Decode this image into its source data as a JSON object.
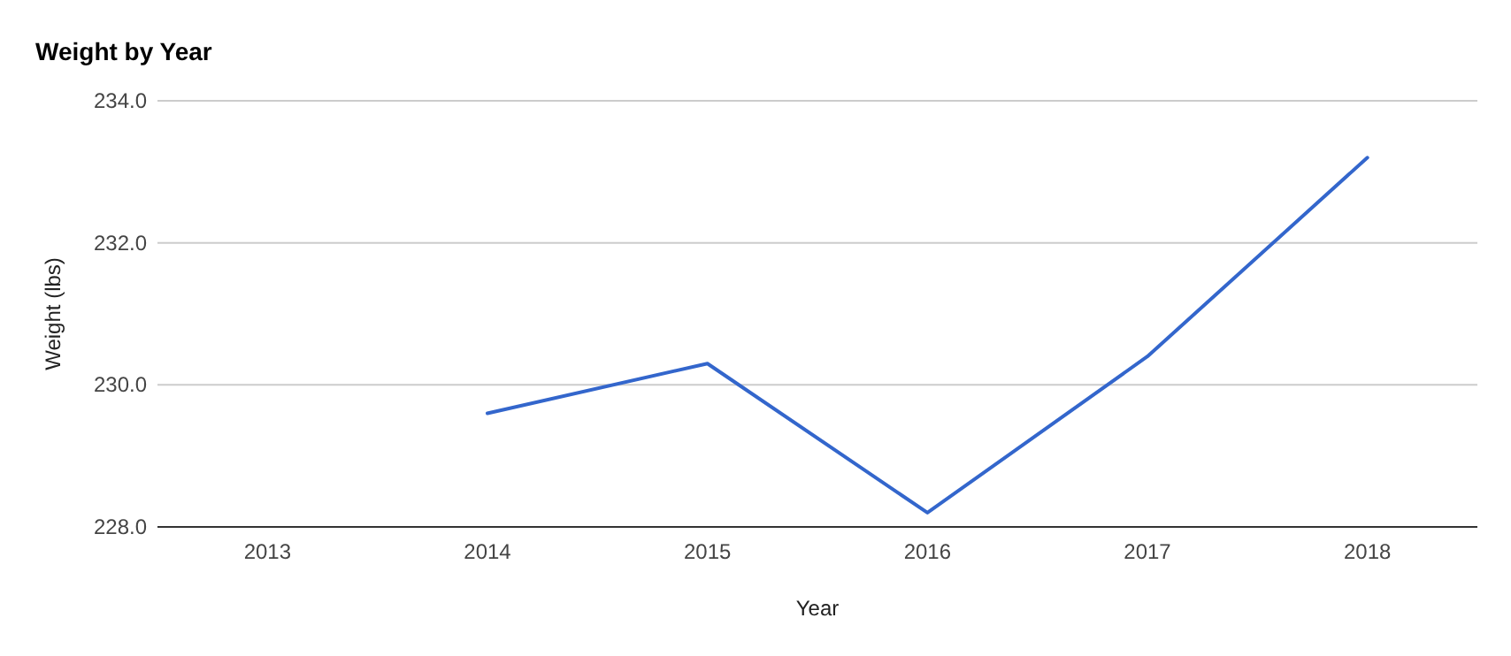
{
  "chart_data": {
    "type": "line",
    "title": "Weight by Year",
    "xlabel": "Year",
    "ylabel": "Weight (lbs)",
    "categories": [
      "2013",
      "2014",
      "2015",
      "2016",
      "2017",
      "2018"
    ],
    "series": [
      {
        "color": "#3366cc",
        "values": [
          null,
          229.6,
          230.3,
          228.2,
          230.4,
          233.2
        ]
      }
    ],
    "ylim": [
      228,
      234
    ],
    "yticks": [
      {
        "value": 228,
        "label": "228.0"
      },
      {
        "value": 230,
        "label": "230.0"
      },
      {
        "value": 232,
        "label": "232.0"
      },
      {
        "value": 234,
        "label": "234.0"
      }
    ],
    "grid": true,
    "marker": "none",
    "line_style": "solid"
  }
}
